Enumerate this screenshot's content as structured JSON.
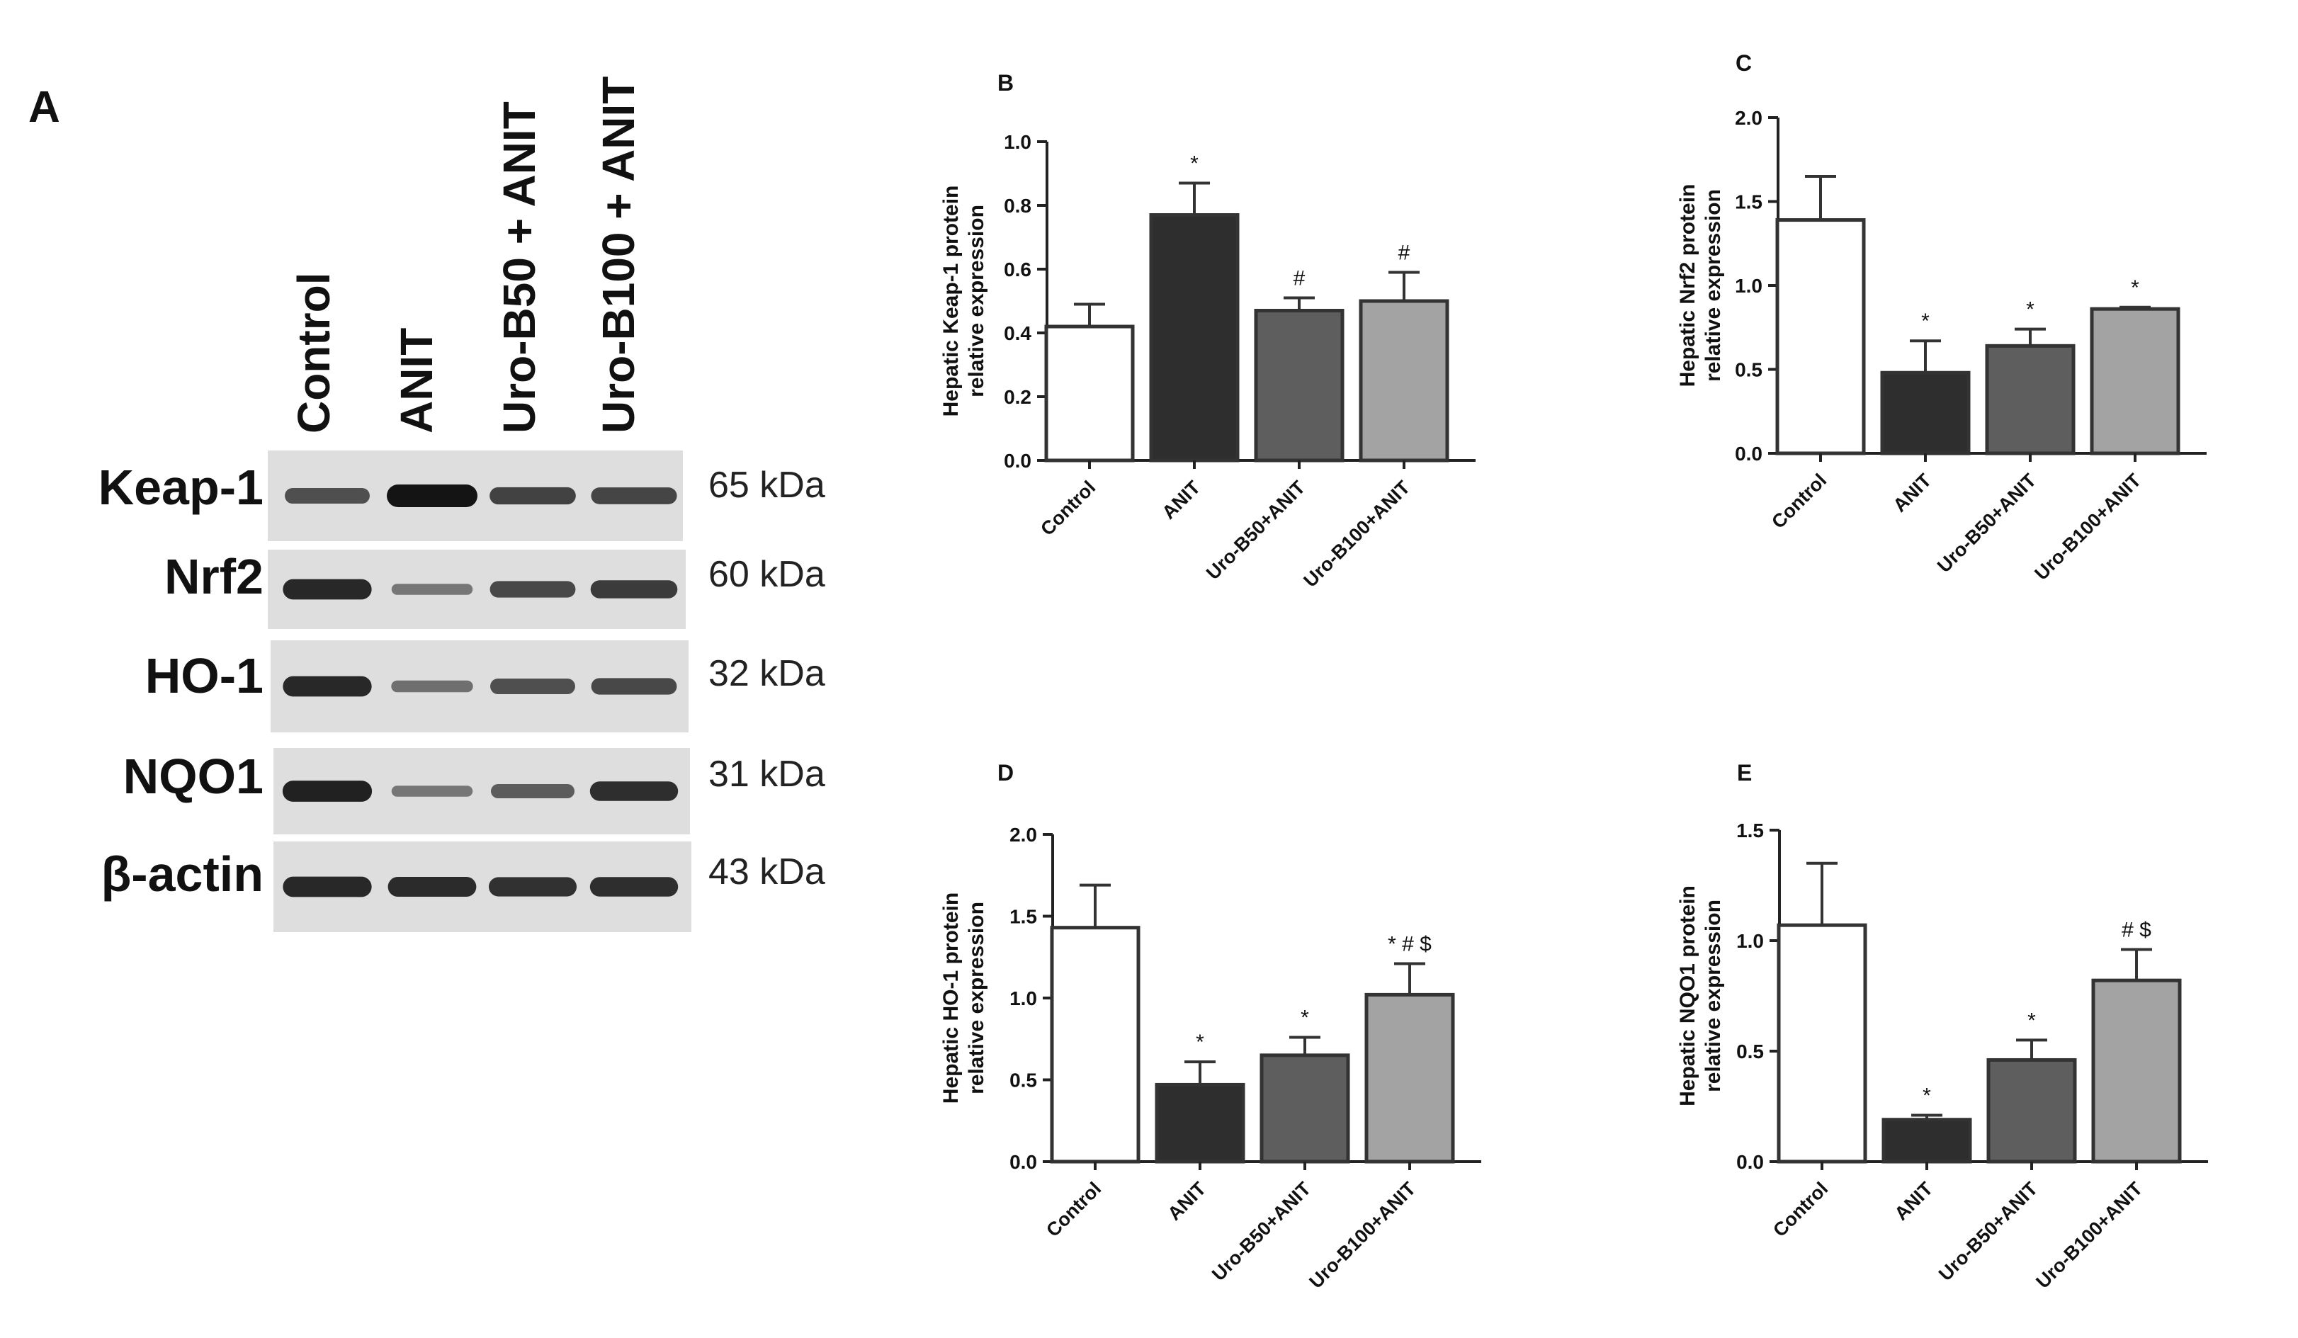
{
  "panel_a": {
    "label": "A",
    "lanes": [
      "Control",
      "ANIT",
      "Uro-B50 + ANIT",
      "Uro-B100 + ANIT"
    ],
    "blots": [
      {
        "protein": "Keap-1",
        "kda": "65 kDa",
        "intensity": [
          0.55,
          1.0,
          0.65,
          0.62
        ]
      },
      {
        "protein": "Nrf2",
        "kda": "60 kDa",
        "intensity": [
          0.85,
          0.25,
          0.6,
          0.7
        ]
      },
      {
        "protein": "HO-1",
        "kda": "32 kDa",
        "intensity": [
          0.85,
          0.3,
          0.55,
          0.6
        ]
      },
      {
        "protein": "NQO1",
        "kda": "31 kDa",
        "intensity": [
          0.9,
          0.25,
          0.45,
          0.8
        ]
      },
      {
        "protein": "β-actin",
        "kda": "43 kDa",
        "intensity": [
          0.85,
          0.82,
          0.78,
          0.8
        ]
      }
    ]
  },
  "colors": {
    "bars": [
      "#ffffff",
      "#2e2e2e",
      "#5e5e5e",
      "#a3a3a3"
    ],
    "outline": "#333333",
    "text": "#111111"
  },
  "chart_data": [
    {
      "panel": "B",
      "type": "bar",
      "ylabel": [
        "Hepatic Keap-1 protein",
        "relative expression"
      ],
      "categories": [
        "Control",
        "ANIT",
        "Uro-B50+ANIT",
        "Uro-B100+ANIT"
      ],
      "values": [
        0.42,
        0.77,
        0.47,
        0.5
      ],
      "errors": [
        0.07,
        0.1,
        0.04,
        0.09
      ],
      "annotations": [
        "",
        "*",
        "#",
        "#"
      ],
      "ylim": [
        0,
        1.0
      ],
      "yticks": [
        "0.0",
        "0.2",
        "0.4",
        "0.6",
        "0.8",
        "1.0"
      ]
    },
    {
      "panel": "C",
      "type": "bar",
      "ylabel": [
        "Hepatic Nrf2 protein",
        "relative expression"
      ],
      "categories": [
        "Control",
        "ANIT",
        "Uro-B50+ANIT",
        "Uro-B100+ANIT"
      ],
      "values": [
        1.39,
        0.48,
        0.64,
        0.86
      ],
      "errors": [
        0.26,
        0.19,
        0.1,
        0.01
      ],
      "annotations": [
        "",
        "*",
        "*",
        "*"
      ],
      "ylim": [
        0,
        2.0
      ],
      "yticks": [
        "0.0",
        "0.5",
        "1.0",
        "1.5",
        "2.0"
      ]
    },
    {
      "panel": "D",
      "type": "bar",
      "ylabel": [
        "Hepatic HO-1 protein",
        "relative expression"
      ],
      "categories": [
        "Control",
        "ANIT",
        "Uro-B50+ANIT",
        "Uro-B100+ANIT"
      ],
      "values": [
        1.43,
        0.47,
        0.65,
        1.02
      ],
      "errors": [
        0.26,
        0.14,
        0.11,
        0.19
      ],
      "annotations": [
        "",
        "*",
        "*",
        "* # $"
      ],
      "ylim": [
        0,
        2.0
      ],
      "yticks": [
        "0.0",
        "0.5",
        "1.0",
        "1.5",
        "2.0"
      ]
    },
    {
      "panel": "E",
      "type": "bar",
      "ylabel": [
        "Hepatic NQO1 protein",
        "relative expression"
      ],
      "categories": [
        "Control",
        "ANIT",
        "Uro-B50+ANIT",
        "Uro-B100+ANIT"
      ],
      "values": [
        1.07,
        0.19,
        0.46,
        0.82
      ],
      "errors": [
        0.28,
        0.02,
        0.09,
        0.14
      ],
      "annotations": [
        "",
        "*",
        "*",
        "# $"
      ],
      "ylim": [
        0,
        1.5
      ],
      "yticks": [
        "0.0",
        "0.5",
        "1.0",
        "1.5"
      ]
    }
  ]
}
